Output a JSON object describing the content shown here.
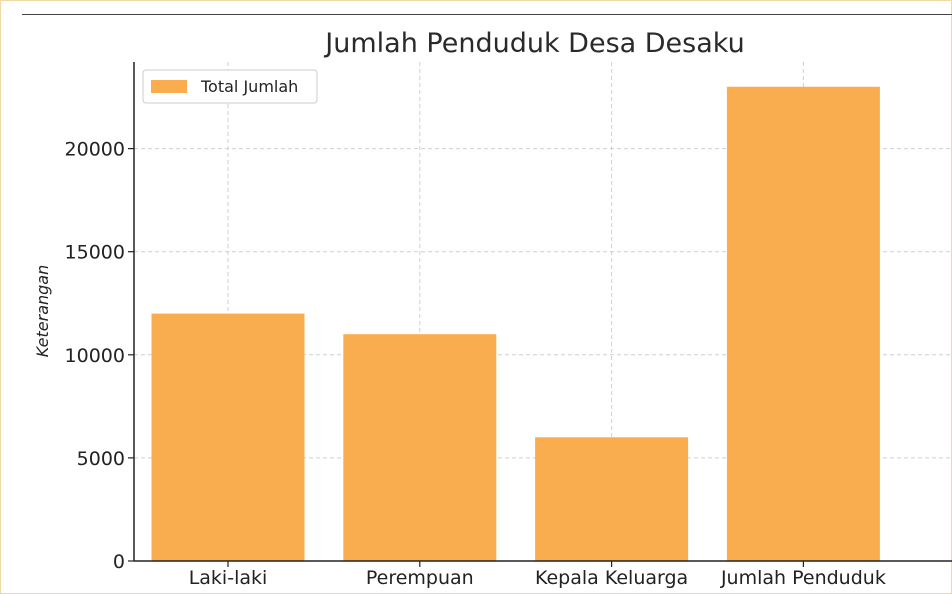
{
  "chart_data": {
    "type": "bar",
    "title": "Jumlah Penduduk Desa Desaku",
    "xlabel": "",
    "ylabel": "Keterangan",
    "categories": [
      "Laki-laki",
      "Perempuan",
      "Kepala Keluarga",
      "Jumlah Penduduk"
    ],
    "series": [
      {
        "name": "Total Jumlah",
        "values": [
          12000,
          11000,
          6000,
          23000
        ],
        "color": "#f9ad4f"
      }
    ],
    "ylim": [
      0,
      24200
    ],
    "yticks": [
      0,
      5000,
      10000,
      15000,
      20000
    ],
    "grid": true,
    "legend": "top-left"
  }
}
